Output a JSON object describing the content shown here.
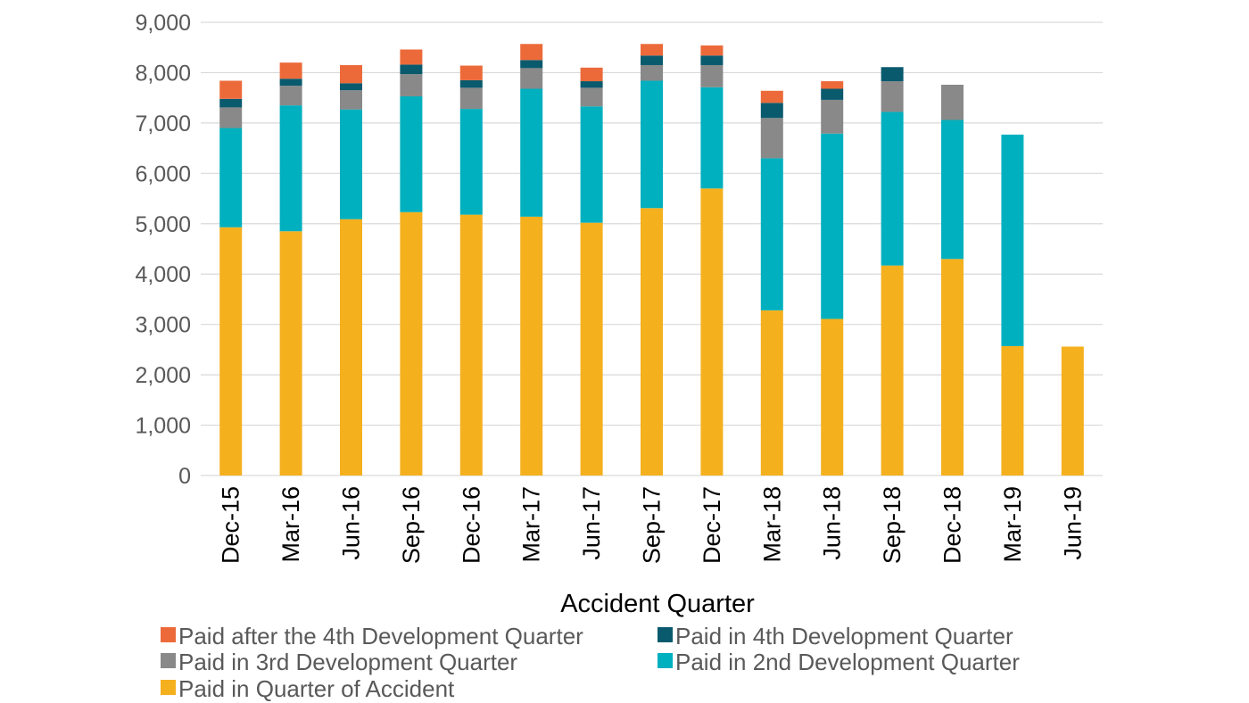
{
  "chart_data": {
    "type": "bar",
    "stacked": true,
    "title": "",
    "xlabel": "Accident Quarter",
    "ylabel": "",
    "ylim": [
      0,
      9000
    ],
    "y_ticks": [
      0,
      1000,
      2000,
      3000,
      4000,
      5000,
      6000,
      7000,
      8000,
      9000
    ],
    "y_tick_labels": [
      "0",
      "1,000",
      "2,000",
      "3,000",
      "4,000",
      "5,000",
      "6,000",
      "7,000",
      "8,000",
      "9,000"
    ],
    "grid": true,
    "legend_position": "bottom",
    "categories": [
      "Dec-15",
      "Mar-16",
      "Jun-16",
      "Sep-16",
      "Dec-16",
      "Mar-17",
      "Jun-17",
      "Sep-17",
      "Dec-17",
      "Mar-18",
      "Jun-18",
      "Sep-18",
      "Dec-18",
      "Mar-19",
      "Jun-19"
    ],
    "series": [
      {
        "name": "Paid in Quarter of Accident",
        "color": "#f5b01e",
        "values": [
          4930,
          4850,
          5090,
          5230,
          5180,
          5140,
          5020,
          5310,
          5700,
          3280,
          3110,
          4170,
          4300,
          2570,
          2560
        ]
      },
      {
        "name": "Paid in 2nd Development Quarter",
        "color": "#00b0bf",
        "values": [
          1970,
          2500,
          2180,
          2300,
          2100,
          2540,
          2310,
          2530,
          2010,
          3020,
          3680,
          3050,
          2760,
          4200,
          0
        ]
      },
      {
        "name": "Paid in 3rd Development Quarter",
        "color": "#898989",
        "values": [
          410,
          390,
          380,
          440,
          420,
          410,
          370,
          310,
          440,
          800,
          670,
          610,
          700,
          0,
          0
        ]
      },
      {
        "name": "Paid in 4th Development Quarter",
        "color": "#0a5a6e",
        "values": [
          170,
          140,
          140,
          190,
          150,
          160,
          130,
          190,
          190,
          300,
          220,
          280,
          0,
          0,
          0
        ]
      },
      {
        "name": "Paid after the 4th Development Quarter",
        "color": "#ec6a3a",
        "values": [
          360,
          320,
          360,
          300,
          290,
          320,
          270,
          230,
          200,
          240,
          150,
          0,
          0,
          0,
          0
        ]
      }
    ],
    "legend_order": [
      "Paid after the 4th Development Quarter",
      "Paid in 4th Development Quarter",
      "Paid in 3rd Development Quarter",
      "Paid in 2nd Development Quarter",
      "Paid in Quarter of Accident"
    ]
  }
}
